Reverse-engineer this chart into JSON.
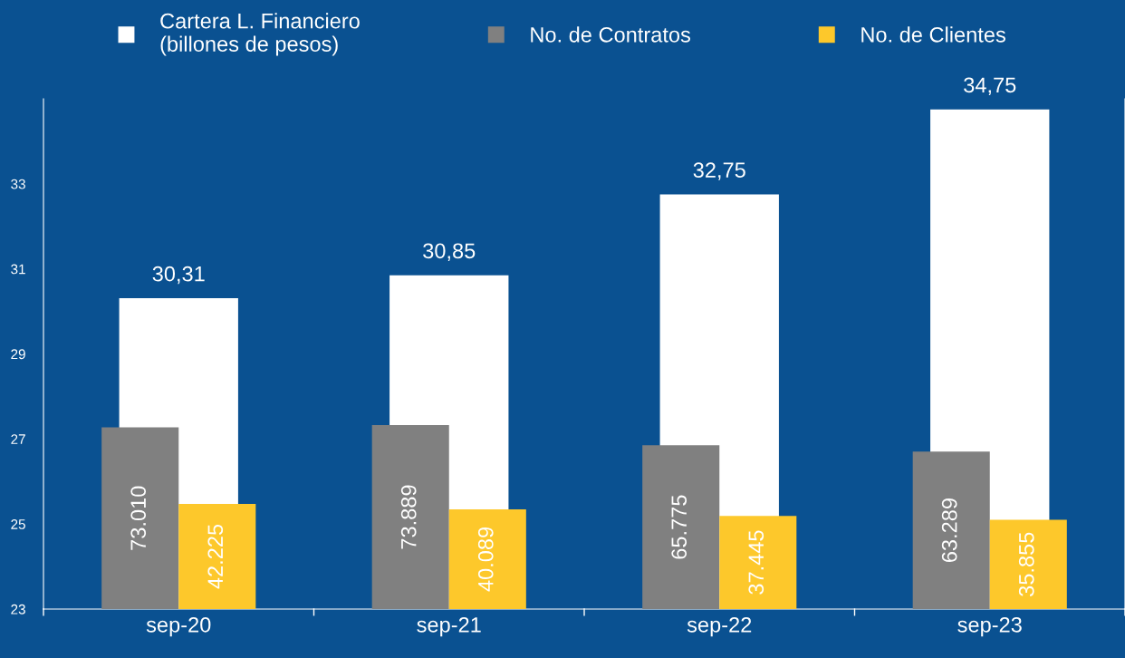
{
  "chart_data": {
    "type": "bar",
    "categories": [
      "sep-20",
      "sep-21",
      "sep-22",
      "sep-23"
    ],
    "series": [
      {
        "name": "Cartera L. Financiero\n(billones de pesos)",
        "color": "#ffffff",
        "values": [
          30.31,
          30.85,
          32.75,
          34.75
        ],
        "value_labels": [
          "30,31",
          "30,85",
          "32,75",
          "34,75"
        ]
      },
      {
        "name": "No. de Contratos",
        "color": "#808080",
        "axis": "y2",
        "values": [
          73010,
          73889,
          65775,
          63289
        ],
        "value_labels": [
          "73.010",
          "73.889",
          "65.775",
          "63.289"
        ]
      },
      {
        "name": "No. de Clientes",
        "color": "#fdc82b",
        "axis": "y2",
        "values": [
          42225,
          40089,
          37445,
          35855
        ],
        "value_labels": [
          "42.225",
          "40.089",
          "37.445",
          "35.855"
        ]
      }
    ],
    "ylim": [
      23,
      35
    ],
    "yticks": [
      23,
      25,
      27,
      29,
      31,
      33
    ],
    "y2lim": [
      0,
      205000
    ],
    "grid": false,
    "legend": "top"
  }
}
